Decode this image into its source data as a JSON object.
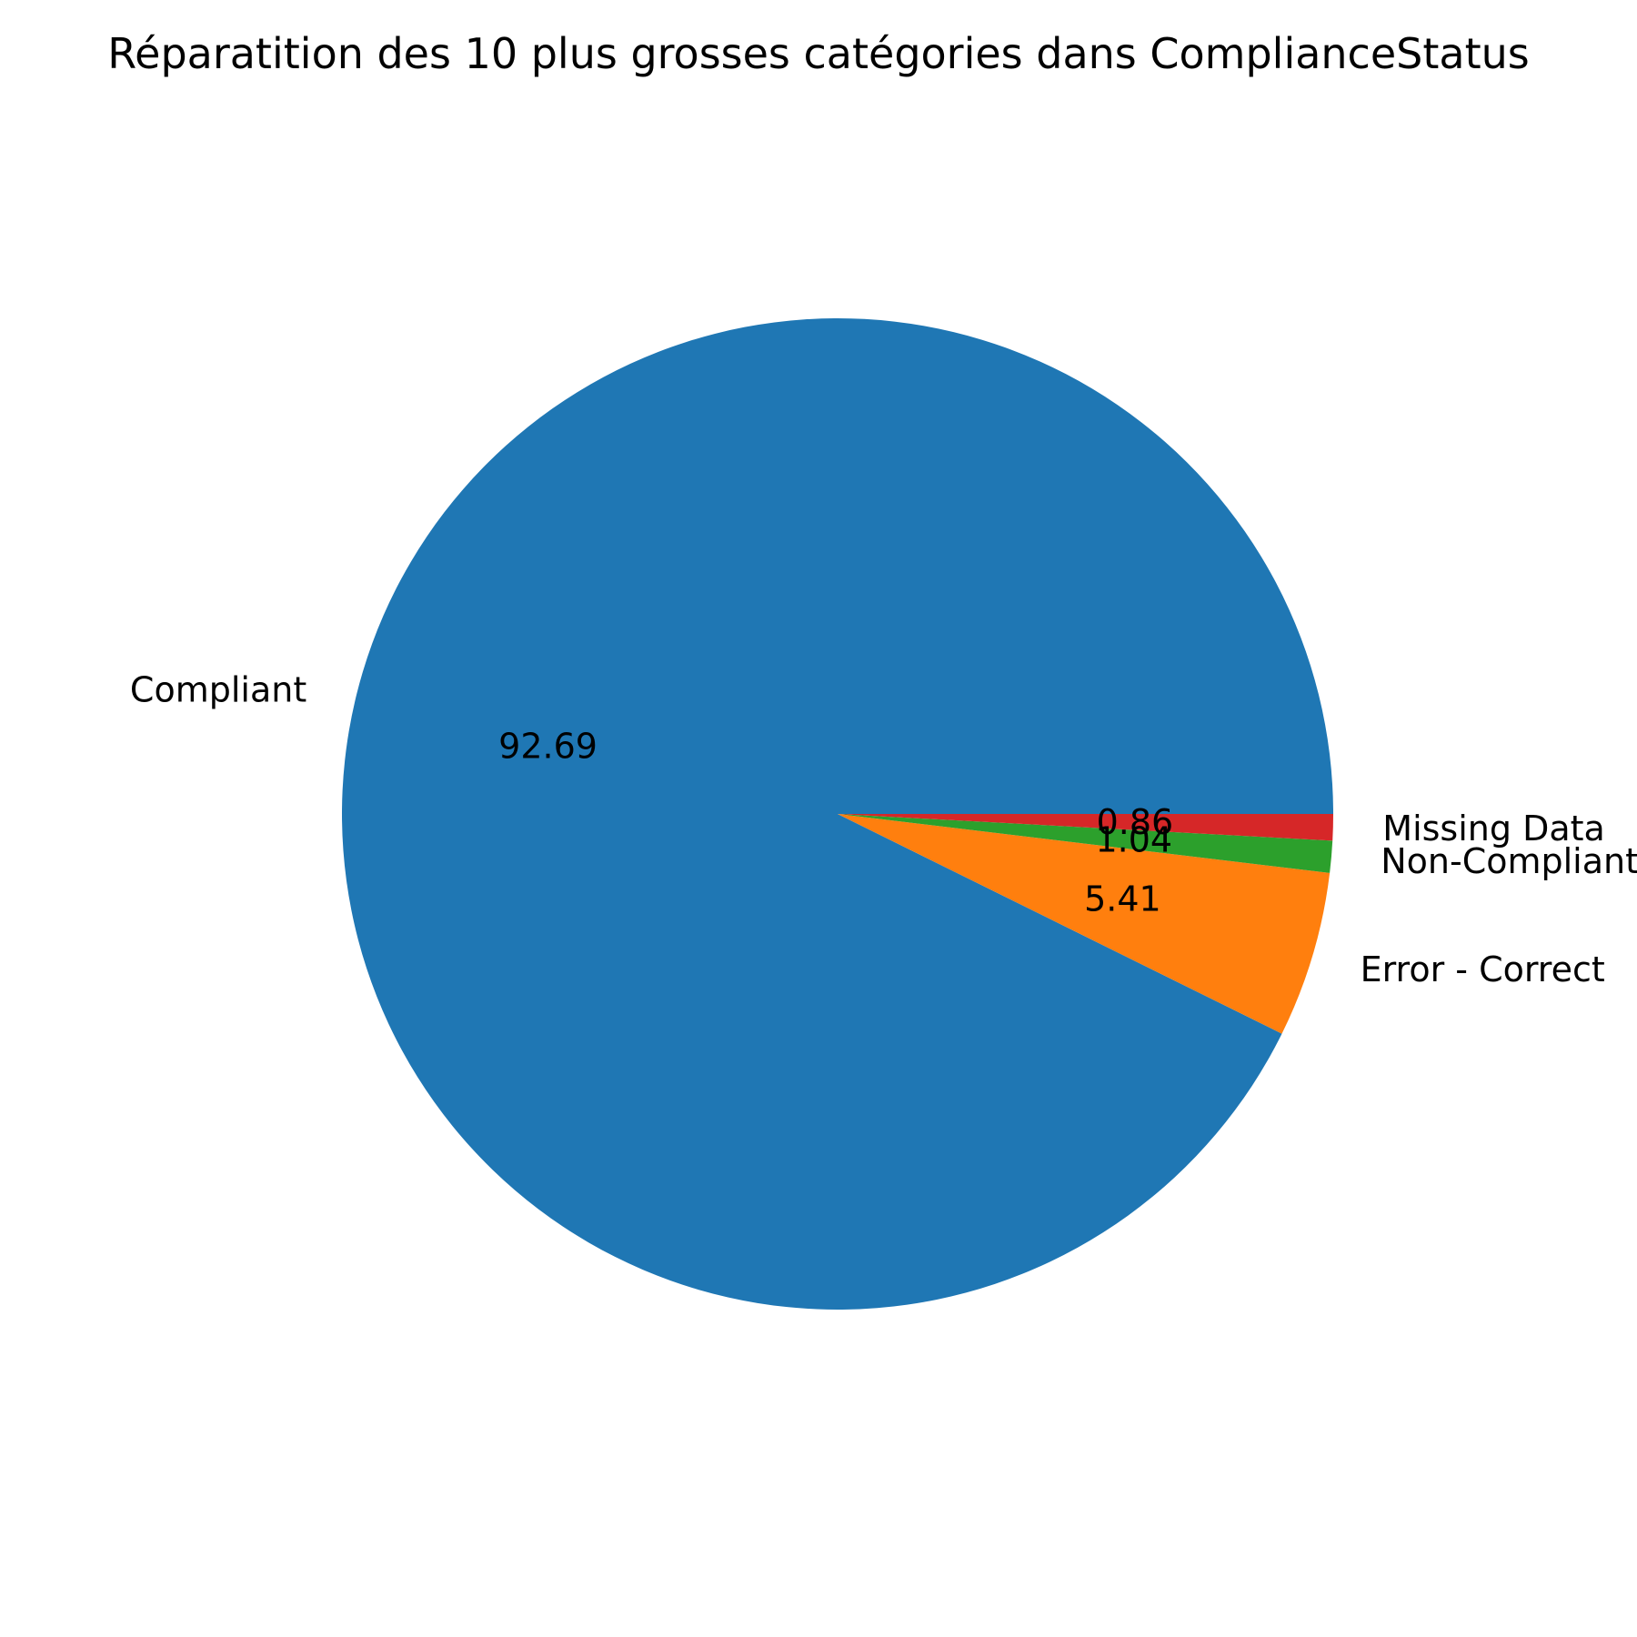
{
  "chart_data": {
    "type": "pie",
    "title": "Réparatition des 10 plus grosses catégories dans ComplianceStatus",
    "start_angle_deg": 0,
    "direction": "counterclockwise",
    "slices": [
      {
        "label": "Compliant",
        "value": 92.69,
        "pct_label": "92.69",
        "color": "#1f77b4"
      },
      {
        "label": "Error - Correct",
        "value": 5.41,
        "pct_label": "5.41",
        "color": "#ff7f0e"
      },
      {
        "label": "Non-Compliant",
        "value": 1.04,
        "pct_label": "1.04",
        "color": "#2ca02c"
      },
      {
        "label": "Missing Data",
        "value": 0.86,
        "pct_label": "0.86",
        "color": "#d62728"
      }
    ]
  }
}
